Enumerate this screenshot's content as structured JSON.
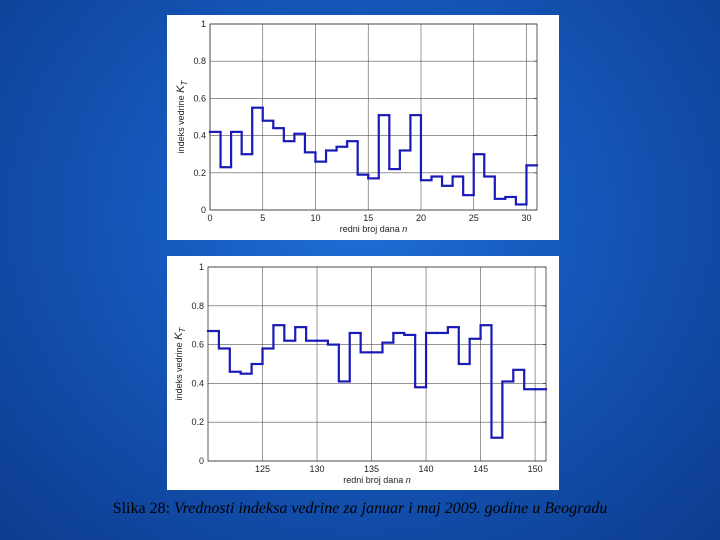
{
  "caption": {
    "label": "Slika 28:",
    "text": "Vrednosti indeksa vedrine za januar i maj 2009. godine u Beogradu"
  },
  "chart_data": [
    {
      "type": "line",
      "step": true,
      "xlabel": "redni broj dana n",
      "ylabel": "indeks vedrine K_T",
      "xlim": [
        0,
        31
      ],
      "ylim": [
        0,
        1
      ],
      "xticks": [
        0,
        5,
        10,
        15,
        20,
        25,
        30
      ],
      "yticks": [
        0,
        0.2,
        0.4,
        0.6,
        0.8,
        1
      ],
      "ytick_labels": [
        "0",
        "0.2",
        "0.4",
        "0.6",
        "0.8",
        "1"
      ],
      "grid": true,
      "color": "#1a1ab8",
      "x": [
        0,
        1,
        2,
        3,
        4,
        5,
        6,
        7,
        8,
        9,
        10,
        11,
        12,
        13,
        14,
        15,
        16,
        17,
        18,
        19,
        20,
        21,
        22,
        23,
        24,
        25,
        26,
        27,
        28,
        29,
        30
      ],
      "values": [
        0.42,
        0.23,
        0.42,
        0.3,
        0.55,
        0.48,
        0.44,
        0.37,
        0.41,
        0.31,
        0.26,
        0.32,
        0.34,
        0.37,
        0.19,
        0.17,
        0.51,
        0.22,
        0.32,
        0.51,
        0.16,
        0.18,
        0.13,
        0.18,
        0.08,
        0.3,
        0.18,
        0.06,
        0.07,
        0.03,
        0.24
      ]
    },
    {
      "type": "line",
      "step": true,
      "xlabel": "redni broj dana n",
      "ylabel": "indeks vedrine K_T",
      "xlim": [
        120,
        151
      ],
      "ylim": [
        0,
        1
      ],
      "xticks": [
        125,
        130,
        135,
        140,
        145,
        150
      ],
      "yticks": [
        0,
        0.2,
        0.4,
        0.6,
        0.8,
        1
      ],
      "ytick_labels": [
        "0",
        "0.2",
        "0.4",
        "0.6",
        "0.8",
        "1"
      ],
      "grid": true,
      "color": "#1a1ab8",
      "x": [
        120,
        121,
        122,
        123,
        124,
        125,
        126,
        127,
        128,
        129,
        130,
        131,
        132,
        133,
        134,
        135,
        136,
        137,
        138,
        139,
        140,
        141,
        142,
        143,
        144,
        145,
        146,
        147,
        148,
        149,
        150
      ],
      "values": [
        0.67,
        0.58,
        0.46,
        0.45,
        0.5,
        0.58,
        0.7,
        0.62,
        0.69,
        0.62,
        0.62,
        0.6,
        0.41,
        0.66,
        0.56,
        0.56,
        0.61,
        0.66,
        0.65,
        0.38,
        0.66,
        0.66,
        0.69,
        0.5,
        0.63,
        0.7,
        0.12,
        0.41,
        0.47,
        0.37,
        0.37
      ]
    }
  ]
}
